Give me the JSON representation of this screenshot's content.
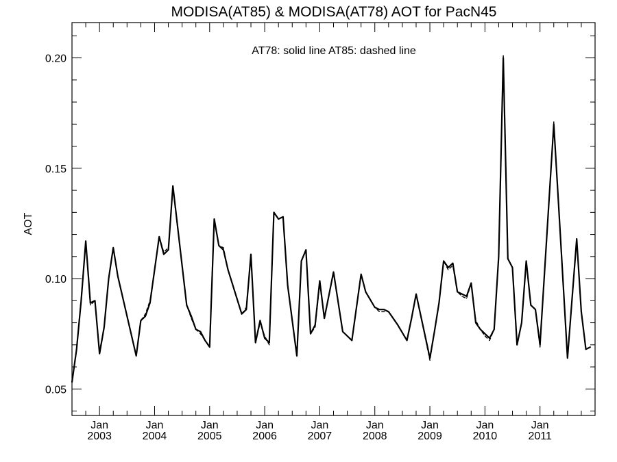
{
  "chart_data": {
    "type": "line",
    "title": "MODISA(AT85) & MODISA(AT78)  AOT for PacN45",
    "annotation": "AT78: solid line   AT85: dashed line",
    "ylabel": "AOT",
    "xlabel": "",
    "xlim": [
      "2002-07-01",
      "2012-01-01"
    ],
    "ylim": [
      0.038,
      0.216
    ],
    "yticks": [
      "0.05",
      "0.10",
      "0.15",
      "0.20"
    ],
    "xticks": [
      {
        "top": "Jan",
        "bottom": "2003",
        "date": "2003-01-01"
      },
      {
        "top": "Jan",
        "bottom": "2004",
        "date": "2004-01-01"
      },
      {
        "top": "Jan",
        "bottom": "2005",
        "date": "2005-01-01"
      },
      {
        "top": "Jan",
        "bottom": "2006",
        "date": "2006-01-01"
      },
      {
        "top": "Jan",
        "bottom": "2007",
        "date": "2007-01-01"
      },
      {
        "top": "Jan",
        "bottom": "2008",
        "date": "2008-01-01"
      },
      {
        "top": "Jan",
        "bottom": "2009",
        "date": "2009-01-01"
      },
      {
        "top": "Jan",
        "bottom": "2010",
        "date": "2010-01-01"
      },
      {
        "top": "Jan",
        "bottom": "2011",
        "date": "2011-01-01"
      }
    ],
    "grid": false,
    "series": [
      {
        "name": "AT78",
        "style": "solid",
        "color": "#000000",
        "x": [
          "2002-07",
          "2002-08",
          "2002-09",
          "2002-10",
          "2002-11",
          "2002-12",
          "2003-01",
          "2003-02",
          "2003-03",
          "2003-04",
          "2003-05",
          "2003-09",
          "2003-10",
          "2003-11",
          "2003-12",
          "2004-01",
          "2004-02",
          "2004-03",
          "2004-04",
          "2004-05",
          "2004-08",
          "2004-09",
          "2004-10",
          "2004-11",
          "2004-12",
          "2005-01",
          "2005-02",
          "2005-03",
          "2005-04",
          "2005-05",
          "2005-08",
          "2005-09",
          "2005-10",
          "2005-11",
          "2005-12",
          "2006-01",
          "2006-02",
          "2006-03",
          "2006-04",
          "2006-05",
          "2006-06",
          "2006-08",
          "2006-09",
          "2006-10",
          "2006-11",
          "2006-12",
          "2007-01",
          "2007-02",
          "2007-04",
          "2007-06",
          "2007-08",
          "2007-10",
          "2007-11",
          "2008-01",
          "2008-02",
          "2008-03",
          "2008-04",
          "2008-06",
          "2008-08",
          "2008-09",
          "2008-10",
          "2009-01",
          "2009-02",
          "2009-03",
          "2009-04",
          "2009-05",
          "2009-06",
          "2009-07",
          "2009-08",
          "2009-09",
          "2009-10",
          "2009-11",
          "2009-12",
          "2010-01",
          "2010-02",
          "2010-03",
          "2010-04",
          "2010-05",
          "2010-06",
          "2010-07",
          "2010-08",
          "2010-09",
          "2010-10",
          "2010-11",
          "2010-12",
          "2011-01",
          "2011-04",
          "2011-05",
          "2011-07",
          "2011-09",
          "2011-10",
          "2011-11",
          "2011-12"
        ],
        "values": [
          0.053,
          0.068,
          0.09,
          0.117,
          0.089,
          0.09,
          0.066,
          0.078,
          0.1,
          0.114,
          0.101,
          0.065,
          0.081,
          0.083,
          0.089,
          0.104,
          0.119,
          0.111,
          0.113,
          0.142,
          0.088,
          0.083,
          0.077,
          0.076,
          0.072,
          0.069,
          0.127,
          0.115,
          0.113,
          0.104,
          0.084,
          0.086,
          0.111,
          0.071,
          0.081,
          0.073,
          0.071,
          0.13,
          0.127,
          0.128,
          0.097,
          0.065,
          0.108,
          0.113,
          0.075,
          0.079,
          0.099,
          0.082,
          0.103,
          0.076,
          0.072,
          0.102,
          0.094,
          0.087,
          0.086,
          0.086,
          0.085,
          0.079,
          0.072,
          0.082,
          0.093,
          0.064,
          0.076,
          0.089,
          0.108,
          0.105,
          0.107,
          0.094,
          0.093,
          0.092,
          0.098,
          0.08,
          0.077,
          0.075,
          0.073,
          0.077,
          0.11,
          0.2,
          0.109,
          0.105,
          0.07,
          0.08,
          0.108,
          0.088,
          0.086,
          0.07,
          0.17,
          0.135,
          0.064,
          0.118,
          0.085,
          0.068,
          0.069
        ]
      },
      {
        "name": "AT85",
        "style": "dashed",
        "color": "#000000",
        "x": [
          "2002-07",
          "2002-08",
          "2002-09",
          "2002-10",
          "2002-11",
          "2002-12",
          "2003-01",
          "2003-02",
          "2003-03",
          "2003-04",
          "2003-05",
          "2003-09",
          "2003-10",
          "2003-11",
          "2003-12",
          "2004-01",
          "2004-02",
          "2004-03",
          "2004-04",
          "2004-05",
          "2004-08",
          "2004-09",
          "2004-10",
          "2004-11",
          "2004-12",
          "2005-01",
          "2005-02",
          "2005-03",
          "2005-04",
          "2005-05",
          "2005-08",
          "2005-09",
          "2005-10",
          "2005-11",
          "2005-12",
          "2006-01",
          "2006-02",
          "2006-03",
          "2006-04",
          "2006-05",
          "2006-06",
          "2006-08",
          "2006-09",
          "2006-10",
          "2006-11",
          "2006-12",
          "2007-01",
          "2007-02",
          "2007-04",
          "2007-06",
          "2007-08",
          "2007-10",
          "2007-11",
          "2008-01",
          "2008-02",
          "2008-03",
          "2008-04",
          "2008-06",
          "2008-08",
          "2008-09",
          "2008-10",
          "2009-01",
          "2009-02",
          "2009-03",
          "2009-04",
          "2009-05",
          "2009-06",
          "2009-07",
          "2009-08",
          "2009-09",
          "2009-10",
          "2009-11",
          "2009-12",
          "2010-01",
          "2010-02",
          "2010-03",
          "2010-04",
          "2010-05",
          "2010-06",
          "2010-07",
          "2010-08",
          "2010-09",
          "2010-10",
          "2010-11",
          "2010-12",
          "2011-01",
          "2011-04",
          "2011-05",
          "2011-07",
          "2011-09",
          "2011-10",
          "2011-11",
          "2011-12"
        ],
        "values": [
          0.053,
          0.068,
          0.091,
          0.117,
          0.088,
          0.09,
          0.067,
          0.078,
          0.1,
          0.114,
          0.101,
          0.065,
          0.081,
          0.084,
          0.09,
          0.104,
          0.119,
          0.112,
          0.114,
          0.141,
          0.088,
          0.082,
          0.077,
          0.075,
          0.072,
          0.069,
          0.127,
          0.115,
          0.114,
          0.104,
          0.084,
          0.087,
          0.11,
          0.071,
          0.08,
          0.074,
          0.07,
          0.13,
          0.127,
          0.128,
          0.097,
          0.065,
          0.108,
          0.113,
          0.075,
          0.078,
          0.098,
          0.082,
          0.103,
          0.076,
          0.072,
          0.102,
          0.094,
          0.087,
          0.085,
          0.085,
          0.085,
          0.079,
          0.072,
          0.082,
          0.093,
          0.063,
          0.076,
          0.089,
          0.108,
          0.104,
          0.106,
          0.094,
          0.092,
          0.091,
          0.098,
          0.081,
          0.077,
          0.074,
          0.072,
          0.077,
          0.11,
          0.201,
          0.109,
          0.105,
          0.07,
          0.08,
          0.107,
          0.088,
          0.086,
          0.069,
          0.171,
          0.135,
          0.064,
          0.118,
          0.085,
          0.068,
          0.069
        ]
      }
    ]
  }
}
